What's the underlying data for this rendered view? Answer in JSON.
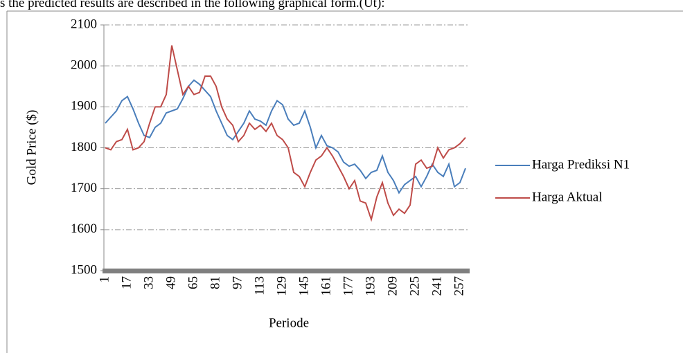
{
  "caption": "s the predicted results are described in the following graphical form.(Ut):",
  "chart_data": {
    "type": "line",
    "xlabel": "Periode",
    "ylabel": "Gold Price ($)",
    "x": [
      1,
      5,
      9,
      13,
      17,
      21,
      25,
      29,
      33,
      37,
      41,
      45,
      49,
      53,
      57,
      61,
      65,
      69,
      73,
      77,
      81,
      85,
      89,
      93,
      97,
      101,
      105,
      109,
      113,
      117,
      121,
      125,
      129,
      133,
      137,
      141,
      145,
      149,
      153,
      157,
      161,
      165,
      169,
      173,
      177,
      181,
      185,
      189,
      193,
      197,
      201,
      205,
      209,
      213,
      217,
      221,
      225,
      229,
      233,
      237,
      241,
      245,
      249,
      253,
      257,
      261
    ],
    "series": [
      {
        "name": "Harga Prediksi N1",
        "color": "#4a7ebb",
        "values": [
          1860,
          1875,
          1890,
          1915,
          1925,
          1895,
          1860,
          1830,
          1825,
          1850,
          1860,
          1885,
          1890,
          1895,
          1920,
          1950,
          1965,
          1955,
          1940,
          1925,
          1890,
          1860,
          1830,
          1820,
          1840,
          1860,
          1890,
          1870,
          1865,
          1855,
          1890,
          1915,
          1905,
          1870,
          1855,
          1860,
          1890,
          1850,
          1800,
          1830,
          1805,
          1800,
          1790,
          1765,
          1755,
          1760,
          1745,
          1725,
          1740,
          1745,
          1780,
          1740,
          1720,
          1690,
          1710,
          1720,
          1730,
          1705,
          1730,
          1760,
          1740,
          1730,
          1760,
          1705,
          1715,
          1750
        ]
      },
      {
        "name": "Harga Aktual",
        "color": "#be4b48",
        "values": [
          1800,
          1795,
          1815,
          1820,
          1845,
          1795,
          1800,
          1815,
          1860,
          1900,
          1900,
          1930,
          2050,
          1990,
          1930,
          1950,
          1930,
          1935,
          1975,
          1975,
          1950,
          1900,
          1870,
          1855,
          1815,
          1830,
          1860,
          1845,
          1855,
          1840,
          1860,
          1830,
          1820,
          1800,
          1740,
          1730,
          1705,
          1740,
          1770,
          1780,
          1800,
          1780,
          1755,
          1730,
          1700,
          1720,
          1670,
          1665,
          1625,
          1680,
          1715,
          1665,
          1635,
          1650,
          1640,
          1660,
          1760,
          1770,
          1750,
          1755,
          1800,
          1775,
          1795,
          1800,
          1810,
          1825
        ]
      }
    ],
    "xlim": [
      0,
      263
    ],
    "xticks": [
      1,
      17,
      33,
      49,
      65,
      81,
      97,
      113,
      129,
      145,
      161,
      177,
      193,
      209,
      225,
      241,
      257
    ],
    "ylim": [
      1500,
      2100
    ],
    "yticks": [
      1500,
      1600,
      1700,
      1800,
      1900,
      2000,
      2100
    ],
    "grid": true,
    "legend": "right"
  }
}
